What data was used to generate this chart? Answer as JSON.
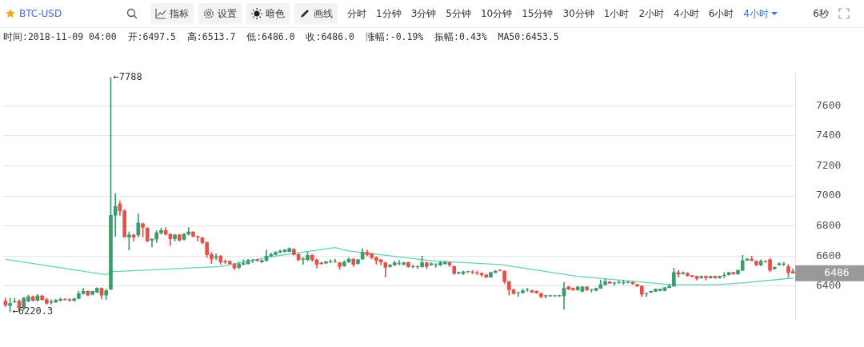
{
  "chart_data": {
    "type": "candlestick",
    "title": "BTC-USD",
    "subtitle": "时间:2018-11-09 04:00  开:6497.5  高:6513.7  低:6486.0  收:6486.0  涨幅:-0.19%  振幅:0.43%  MA50:6453.5",
    "annotations": [
      "指标",
      "设置",
      "暗色",
      "画线",
      "分时",
      "1分钟",
      "3分钟",
      "5分钟",
      "10分钟",
      "15分钟",
      "30分钟",
      "1小时",
      "2小时",
      "4小时",
      "6小时",
      "4小时",
      "6秒",
      "←7788",
      "←6220.3",
      "6486"
    ],
    "ylim": [
      6180,
      7820
    ],
    "yticks": [
      6400,
      6600,
      6800,
      7000,
      7200,
      7400,
      7600
    ],
    "grid": "y",
    "tick_labels": "y",
    "categories": [
      null,
      null,
      null,
      null,
      null,
      null,
      null,
      null,
      null,
      null,
      null,
      null,
      null,
      null,
      null,
      null,
      null,
      null,
      null,
      null,
      null,
      null,
      null,
      null,
      null,
      null,
      null,
      null,
      null,
      null,
      null,
      null,
      null,
      null,
      null,
      null,
      null,
      null,
      null,
      null,
      null,
      null,
      null,
      null,
      null,
      null,
      null,
      null,
      null,
      null,
      null,
      null,
      null,
      null,
      null,
      null,
      null,
      null,
      null,
      null,
      null,
      null,
      null,
      null,
      null,
      null,
      null,
      null,
      null,
      null,
      null,
      null,
      null,
      null,
      null,
      null,
      null,
      null,
      null,
      null,
      null,
      null,
      null,
      null,
      null,
      null,
      null,
      null,
      null,
      null,
      null,
      null,
      null,
      null,
      null,
      null,
      null,
      null,
      null,
      null,
      null,
      null,
      null,
      null,
      null,
      null,
      null,
      null,
      null,
      null,
      null,
      null,
      null,
      null,
      null,
      null,
      null,
      null,
      null,
      null,
      null,
      null,
      null,
      null,
      null,
      null,
      null,
      null,
      null,
      null,
      null,
      null,
      null,
      null,
      null,
      null,
      null,
      null,
      null,
      null,
      null,
      null,
      null,
      null,
      null,
      null,
      null,
      null,
      null,
      null,
      null,
      null,
      null,
      null,
      null,
      null,
      null,
      null,
      null,
      null,
      null,
      null,
      null,
      null,
      null,
      null,
      null,
      null,
      null,
      null,
      null,
      null,
      null
    ],
    "series": [
      {
        "type": "candlestick",
        "ohlc": [
          [
            6300,
            6320,
            6262,
            6275
          ],
          [
            6270,
            6320,
            6230,
            6285
          ],
          [
            6295,
            6320,
            6290,
            6298
          ],
          [
            6300,
            6310,
            6235,
            6255
          ],
          [
            6255,
            6325,
            6240,
            6320
          ],
          [
            6300,
            6340,
            6295,
            6330
          ],
          [
            6330,
            6335,
            6300,
            6305
          ],
          [
            6305,
            6345,
            6300,
            6335
          ],
          [
            6335,
            6340,
            6305,
            6310
          ],
          [
            6310,
            6320,
            6280,
            6285
          ],
          [
            6290,
            6310,
            6280,
            6295
          ],
          [
            6295,
            6312,
            6290,
            6305
          ],
          [
            6305,
            6322,
            6300,
            6312
          ],
          [
            6312,
            6318,
            6305,
            6310
          ],
          [
            6310,
            6318,
            6298,
            6305
          ],
          [
            6305,
            6320,
            6300,
            6315
          ],
          [
            6318,
            6365,
            6315,
            6350
          ],
          [
            6350,
            6385,
            6345,
            6365
          ],
          [
            6365,
            6370,
            6335,
            6340
          ],
          [
            6345,
            6368,
            6340,
            6365
          ],
          [
            6360,
            6390,
            6355,
            6385
          ],
          [
            6385,
            6390,
            6315,
            6340
          ],
          [
            6340,
            6380,
            6310,
            6370
          ],
          [
            6380,
            7788,
            6375,
            6870
          ],
          [
            6871,
            7017,
            6730,
            6929
          ],
          [
            6945,
            6965,
            6870,
            6900
          ],
          [
            6900,
            6910,
            6726,
            6726
          ],
          [
            6726,
            6760,
            6640,
            6740
          ],
          [
            6740,
            6745,
            6700,
            6726
          ],
          [
            6740,
            6880,
            6726,
            6820
          ],
          [
            6815,
            6820,
            6726,
            6790
          ],
          [
            6785,
            6790,
            6695,
            6700
          ],
          [
            6705,
            6715,
            6660,
            6712
          ],
          [
            6712,
            6770,
            6690,
            6755
          ],
          [
            6755,
            6785,
            6745,
            6770
          ],
          [
            6770,
            6790,
            6740,
            6745
          ],
          [
            6745,
            6750,
            6670,
            6715
          ],
          [
            6715,
            6745,
            6700,
            6740
          ],
          [
            6740,
            6745,
            6700,
            6705
          ],
          [
            6710,
            6750,
            6705,
            6745
          ],
          [
            6745,
            6790,
            6740,
            6760
          ],
          [
            6760,
            6762,
            6725,
            6730
          ],
          [
            6730,
            6735,
            6700,
            6725
          ],
          [
            6722,
            6725,
            6680,
            6690
          ],
          [
            6690,
            6695,
            6590,
            6610
          ],
          [
            6610,
            6625,
            6550,
            6580
          ],
          [
            6590,
            6615,
            6575,
            6595
          ],
          [
            6600,
            6605,
            6545,
            6560
          ],
          [
            6565,
            6575,
            6550,
            6560
          ],
          [
            6565,
            6570,
            6545,
            6550
          ],
          [
            6545,
            6550,
            6510,
            6520
          ],
          [
            6525,
            6560,
            6515,
            6545
          ],
          [
            6545,
            6575,
            6540,
            6550
          ],
          [
            6550,
            6580,
            6545,
            6570
          ],
          [
            6570,
            6580,
            6555,
            6572
          ],
          [
            6575,
            6580,
            6565,
            6570
          ],
          [
            6560,
            6575,
            6555,
            6570
          ],
          [
            6570,
            6640,
            6565,
            6600
          ],
          [
            6600,
            6620,
            6595,
            6610
          ],
          [
            6610,
            6630,
            6605,
            6625
          ],
          [
            6625,
            6640,
            6620,
            6632
          ],
          [
            6630,
            6645,
            6625,
            6640
          ],
          [
            6630,
            6655,
            6628,
            6650
          ],
          [
            6645,
            6650,
            6605,
            6610
          ],
          [
            6610,
            6615,
            6570,
            6575
          ],
          [
            6578,
            6590,
            6545,
            6582
          ],
          [
            6575,
            6625,
            6570,
            6605
          ],
          [
            6605,
            6610,
            6565,
            6575
          ],
          [
            6575,
            6580,
            6520,
            6545
          ],
          [
            6555,
            6560,
            6545,
            6550
          ],
          [
            6552,
            6565,
            6548,
            6562
          ],
          [
            6560,
            6575,
            6555,
            6562
          ],
          [
            6562,
            6580,
            6558,
            6564
          ],
          [
            6555,
            6560,
            6510,
            6530
          ],
          [
            6535,
            6570,
            6530,
            6560
          ],
          [
            6560,
            6590,
            6555,
            6580
          ],
          [
            6580,
            6585,
            6530,
            6545
          ],
          [
            6550,
            6580,
            6545,
            6575
          ],
          [
            6580,
            6650,
            6575,
            6625
          ],
          [
            6625,
            6640,
            6600,
            6610
          ],
          [
            6615,
            6620,
            6580,
            6590
          ],
          [
            6590,
            6595,
            6545,
            6570
          ],
          [
            6575,
            6580,
            6540,
            6560
          ],
          [
            6555,
            6560,
            6460,
            6525
          ],
          [
            6530,
            6545,
            6525,
            6540
          ],
          [
            6540,
            6565,
            6535,
            6556
          ],
          [
            6548,
            6570,
            6540,
            6550
          ],
          [
            6545,
            6560,
            6540,
            6555
          ],
          [
            6558,
            6560,
            6525,
            6530
          ],
          [
            6530,
            6540,
            6520,
            6532
          ],
          [
            6528,
            6535,
            6515,
            6530
          ],
          [
            6530,
            6600,
            6525,
            6555
          ],
          [
            6555,
            6560,
            6515,
            6530
          ],
          [
            6542,
            6555,
            6538,
            6549
          ],
          [
            6540,
            6550,
            6525,
            6542
          ],
          [
            6540,
            6565,
            6535,
            6555
          ],
          [
            6550,
            6565,
            6545,
            6558
          ],
          [
            6555,
            6560,
            6530,
            6540
          ],
          [
            6530,
            6535,
            6475,
            6485
          ],
          [
            6484,
            6495,
            6480,
            6490
          ],
          [
            6485,
            6500,
            6475,
            6495
          ],
          [
            6495,
            6500,
            6490,
            6497
          ],
          [
            6495,
            6505,
            6480,
            6493
          ],
          [
            6490,
            6500,
            6475,
            6488
          ],
          [
            6485,
            6490,
            6465,
            6475
          ],
          [
            6475,
            6478,
            6455,
            6460
          ],
          [
            6460,
            6495,
            6458,
            6490
          ],
          [
            6490,
            6505,
            6488,
            6500
          ],
          [
            6505,
            6510,
            6500,
            6503
          ],
          [
            6500,
            6502,
            6415,
            6430
          ],
          [
            6430,
            6432,
            6340,
            6375
          ],
          [
            6375,
            6380,
            6345,
            6350
          ],
          [
            6355,
            6360,
            6330,
            6357
          ],
          [
            6355,
            6380,
            6352,
            6370
          ],
          [
            6375,
            6385,
            6365,
            6377
          ],
          [
            6370,
            6375,
            6355,
            6360
          ],
          [
            6365,
            6370,
            6350,
            6355
          ],
          [
            6350,
            6355,
            6320,
            6330
          ],
          [
            6335,
            6340,
            6320,
            6337
          ],
          [
            6335,
            6340,
            6330,
            6337
          ],
          [
            6335,
            6340,
            6330,
            6336
          ],
          [
            6335,
            6340,
            6330,
            6337
          ],
          [
            6335,
            6425,
            6245,
            6385
          ],
          [
            6395,
            6400,
            6375,
            6380
          ],
          [
            6385,
            6390,
            6370,
            6375
          ],
          [
            6375,
            6398,
            6370,
            6395
          ],
          [
            6365,
            6398,
            6362,
            6395
          ],
          [
            6395,
            6398,
            6370,
            6375
          ],
          [
            6375,
            6380,
            6360,
            6377
          ],
          [
            6370,
            6388,
            6368,
            6385
          ],
          [
            6385,
            6440,
            6383,
            6410
          ],
          [
            6410,
            6450,
            6405,
            6430
          ],
          [
            6428,
            6432,
            6418,
            6420
          ],
          [
            6420,
            6425,
            6405,
            6422
          ],
          [
            6425,
            6435,
            6415,
            6427
          ],
          [
            6422,
            6440,
            6410,
            6424
          ],
          [
            6425,
            6432,
            6420,
            6427
          ],
          [
            6425,
            6428,
            6412,
            6415
          ],
          [
            6410,
            6412,
            6398,
            6400
          ],
          [
            6400,
            6402,
            6330,
            6345
          ],
          [
            6350,
            6355,
            6330,
            6352
          ],
          [
            6360,
            6368,
            6355,
            6365
          ],
          [
            6365,
            6382,
            6362,
            6380
          ],
          [
            6370,
            6382,
            6368,
            6380
          ],
          [
            6370,
            6392,
            6368,
            6390
          ],
          [
            6390,
            6410,
            6388,
            6400
          ],
          [
            6400,
            6520,
            6398,
            6490
          ],
          [
            6490,
            6505,
            6460,
            6480
          ],
          [
            6483,
            6495,
            6478,
            6489
          ],
          [
            6485,
            6490,
            6465,
            6470
          ],
          [
            6470,
            6472,
            6460,
            6465
          ],
          [
            6465,
            6468,
            6440,
            6450
          ],
          [
            6455,
            6468,
            6452,
            6465
          ],
          [
            6465,
            6468,
            6440,
            6455
          ],
          [
            6455,
            6468,
            6452,
            6465
          ],
          [
            6465,
            6468,
            6452,
            6455
          ],
          [
            6455,
            6468,
            6452,
            6465
          ],
          [
            6468,
            6490,
            6455,
            6472
          ],
          [
            6475,
            6492,
            6472,
            6490
          ],
          [
            6490,
            6493,
            6478,
            6480
          ],
          [
            6480,
            6508,
            6478,
            6505
          ],
          [
            6505,
            6605,
            6502,
            6570
          ],
          [
            6573,
            6585,
            6570,
            6579
          ],
          [
            6580,
            6600,
            6568,
            6570
          ],
          [
            6565,
            6570,
            6535,
            6540
          ],
          [
            6540,
            6575,
            6535,
            6565
          ],
          [
            6565,
            6570,
            6558,
            6563
          ],
          [
            6575,
            6585,
            6495,
            6505
          ],
          [
            6515,
            6528,
            6512,
            6525
          ],
          [
            6542,
            6555,
            6538,
            6549
          ],
          [
            6545,
            6560,
            6535,
            6547
          ],
          [
            6530,
            6545,
            6460,
            6490
          ],
          [
            6497.5,
            6513.7,
            6486,
            6486
          ]
        ],
        "colors": [
          "#e0534a",
          "#3d9a6e",
          "#3d9a6e",
          "#e0534a",
          "#3d9a6e",
          "#3d9a6e",
          "#e0534a",
          "#3d9a6e",
          "#e0534a",
          "#e0534a",
          "#3d9a6e",
          "#3d9a6e",
          "#3d9a6e",
          "#e0534a",
          "#e0534a",
          "#3d9a6e",
          "#3d9a6e",
          "#3d9a6e",
          "#e0534a",
          "#3d9a6e",
          "#3d9a6e",
          "#e0534a",
          "#3d9a6e",
          "#3d9a6e",
          "#3d9a6e",
          "#e0534a",
          "#e0534a",
          "#3d9a6e",
          "#e0534a",
          "#3d9a6e",
          "#e0534a",
          "#e0534a",
          "#3d9a6e",
          "#3d9a6e",
          "#3d9a6e",
          "#e0534a",
          "#e0534a",
          "#3d9a6e",
          "#e0534a",
          "#3d9a6e",
          "#3d9a6e",
          "#e0534a",
          "#e0534a",
          "#e0534a",
          "#e0534a",
          "#e0534a",
          "#3d9a6e",
          "#e0534a",
          "#e0534a",
          "#e0534a",
          "#e0534a",
          "#3d9a6e",
          "#3d9a6e",
          "#3d9a6e",
          "#3d9a6e",
          "#e0534a",
          "#3d9a6e",
          "#3d9a6e",
          "#3d9a6e",
          "#3d9a6e",
          "#3d9a6e",
          "#3d9a6e",
          "#3d9a6e",
          "#e0534a",
          "#e0534a",
          "#3d9a6e",
          "#3d9a6e",
          "#e0534a",
          "#e0534a",
          "#e0534a",
          "#3d9a6e",
          "#3d9a6e",
          "#3d9a6e",
          "#e0534a",
          "#3d9a6e",
          "#3d9a6e",
          "#e0534a",
          "#3d9a6e",
          "#3d9a6e",
          "#e0534a",
          "#e0534a",
          "#e0534a",
          "#e0534a",
          "#e0534a",
          "#3d9a6e",
          "#3d9a6e",
          "#3d9a6e",
          "#3d9a6e",
          "#e0534a",
          "#3d9a6e",
          "#3d9a6e",
          "#3d9a6e",
          "#e0534a",
          "#3d9a6e",
          "#3d9a6e",
          "#3d9a6e",
          "#3d9a6e",
          "#e0534a",
          "#e0534a",
          "#3d9a6e",
          "#3d9a6e",
          "#3d9a6e",
          "#e0534a",
          "#e0534a",
          "#e0534a",
          "#e0534a",
          "#3d9a6e",
          "#3d9a6e",
          "#e0534a",
          "#e0534a",
          "#e0534a",
          "#e0534a",
          "#3d9a6e",
          "#3d9a6e",
          "#3d9a6e",
          "#e0534a",
          "#e0534a",
          "#e0534a",
          "#3d9a6e",
          "#3d9a6e",
          "#3d9a6e",
          "#3d9a6e",
          "#3d9a6e",
          "#e0534a",
          "#e0534a",
          "#3d9a6e",
          "#3d9a6e",
          "#e0534a",
          "#3d9a6e",
          "#3d9a6e",
          "#3d9a6e",
          "#3d9a6e",
          "#e0534a",
          "#3d9a6e",
          "#3d9a6e",
          "#3d9a6e",
          "#3d9a6e",
          "#e0534a",
          "#e0534a",
          "#e0534a",
          "#3d9a6e",
          "#3d9a6e",
          "#3d9a6e",
          "#3d9a6e",
          "#3d9a6e",
          "#3d9a6e",
          "#3d9a6e",
          "#e0534a",
          "#3d9a6e",
          "#e0534a",
          "#e0534a",
          "#e0534a",
          "#3d9a6e",
          "#e0534a",
          "#3d9a6e",
          "#e0534a",
          "#3d9a6e",
          "#3d9a6e",
          "#3d9a6e",
          "#e0534a",
          "#3d9a6e",
          "#3d9a6e",
          "#3d9a6e",
          "#e0534a",
          "#e0534a",
          "#3d9a6e",
          "#e0534a",
          "#e0534a",
          "#3d9a6e",
          "#3d9a6e",
          "#3d9a6e",
          "#e0534a",
          "#e0534a"
        ]
      },
      {
        "type": "line",
        "color": "#5fd3b0",
        "values": [
          6578,
          null,
          null,
          null,
          null,
          null,
          null,
          null,
          null,
          null,
          null,
          null,
          null,
          null,
          null,
          null,
          null,
          null,
          null,
          null,
          null,
          null,
          6475,
          6495,
          null,
          null,
          null,
          null,
          null,
          null,
          null,
          null,
          null,
          null,
          null,
          null,
          null,
          null,
          null,
          null,
          null,
          null,
          null,
          null,
          null,
          null,
          null,
          6530,
          null,
          null,
          null,
          null,
          null,
          null,
          null,
          null,
          null,
          null,
          6595,
          null,
          null,
          null,
          null,
          null,
          null,
          null,
          null,
          null,
          null,
          null,
          null,
          null,
          6656,
          null,
          null,
          6634,
          null,
          null,
          null,
          null,
          null,
          null,
          null,
          null,
          null,
          null,
          null,
          null,
          null,
          null,
          null,
          null,
          null,
          6569,
          null,
          null,
          null,
          null,
          null,
          null,
          null,
          null,
          null,
          null,
          null,
          null,
          null,
          null,
          6543,
          null,
          null,
          null,
          null,
          null,
          null,
          null,
          null,
          null,
          null,
          null,
          null,
          null,
          null,
          null,
          null,
          6465,
          null,
          null,
          null,
          null,
          null,
          null,
          null,
          null,
          null,
          null,
          null,
          null,
          null,
          null,
          null,
          null,
          null,
          null,
          6413,
          null,
          6409,
          null,
          null,
          null,
          null,
          null,
          null,
          null,
          null,
          6409,
          null,
          null,
          null,
          null,
          null,
          6421,
          null,
          null,
          null,
          null,
          null,
          null,
          null,
          null,
          null,
          null,
          6453.5
        ]
      }
    ]
  }
}
